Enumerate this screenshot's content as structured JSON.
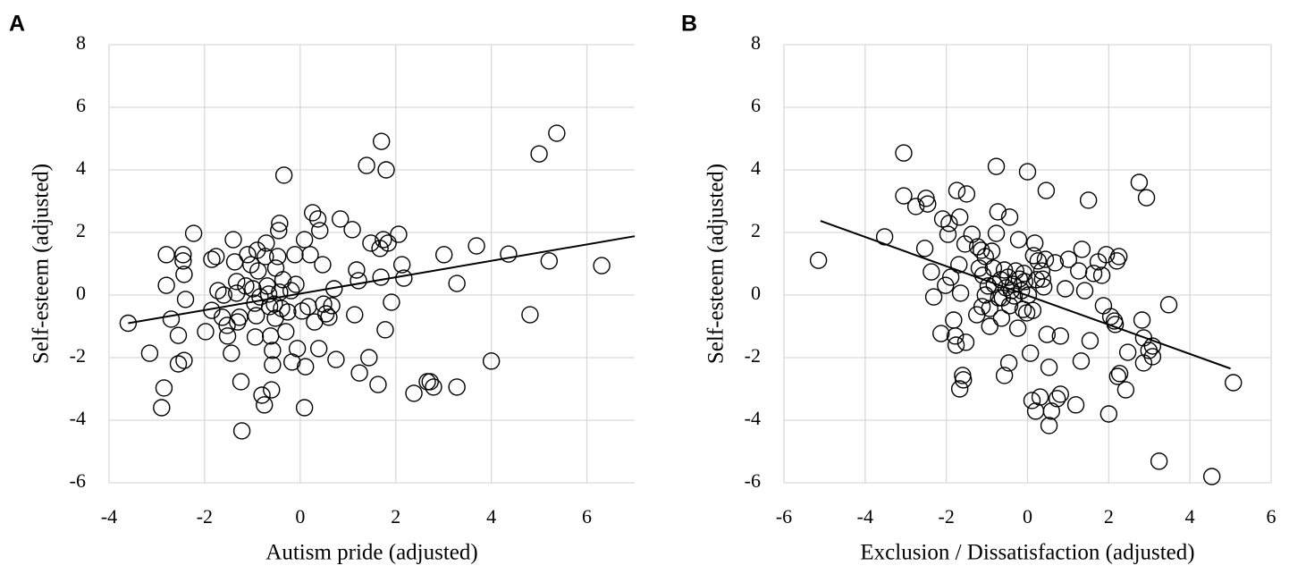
{
  "chart_data": [
    {
      "type": "scatter",
      "panel_label": "A",
      "xlabel": "Autism pride (adjusted)",
      "ylabel": "Self-esteem (adjusted)",
      "xlim": [
        -4,
        7
      ],
      "ylim": [
        -6,
        8
      ],
      "xticks": [
        -4,
        -2,
        0,
        2,
        4,
        6
      ],
      "yticks": [
        -6,
        -4,
        -2,
        0,
        2,
        4,
        6,
        8
      ],
      "grid": true,
      "color": "#000000",
      "x": [
        -3.6,
        -3.15,
        -2.85,
        -2.9,
        -2.8,
        -2.8,
        -2.7,
        -2.55,
        -2.55,
        -2.45,
        -2.45,
        -2.43,
        -2.4,
        -2.43,
        -2.23,
        -1.98,
        -1.85,
        -1.85,
        -1.76,
        -1.72,
        -1.63,
        -1.6,
        -1.53,
        -1.52,
        -1.44,
        -1.4,
        -1.37,
        -1.33,
        -1.33,
        -1.31,
        -1.27,
        -1.24,
        -1.22,
        -1.14,
        -1.1,
        -1.03,
        -0.99,
        -0.95,
        -0.92,
        -0.94,
        -0.9,
        -0.88,
        -0.84,
        -0.8,
        -0.75,
        -0.73,
        -0.71,
        -0.69,
        -0.66,
        -0.64,
        -0.62,
        -0.6,
        -0.58,
        -0.58,
        -0.54,
        -0.52,
        -0.51,
        -0.47,
        -0.45,
        -0.43,
        -0.43,
        -0.39,
        -0.36,
        -0.34,
        -0.3,
        -0.26,
        -0.19,
        -0.17,
        -0.11,
        -0.09,
        -0.06,
        0.04,
        0.09,
        0.11,
        0.09,
        0.17,
        0.21,
        0.26,
        0.3,
        0.37,
        0.39,
        0.41,
        0.47,
        0.49,
        0.54,
        0.6,
        0.66,
        0.71,
        0.75,
        0.84,
        1.09,
        1.14,
        1.18,
        1.22,
        1.24,
        1.39,
        1.44,
        1.48,
        1.63,
        1.69,
        1.7,
        1.67,
        1.74,
        1.78,
        1.8,
        1.84,
        1.91,
        2.06,
        2.13,
        2.17,
        2.38,
        2.66,
        2.72,
        2.79,
        3.01,
        3.28,
        3.28,
        3.69,
        4.0,
        4.36,
        4.81,
        5.0,
        5.21,
        5.37,
        6.31
      ],
      "y": [
        -0.9,
        -1.86,
        -2.97,
        -3.6,
        1.29,
        0.31,
        -0.77,
        -1.29,
        -2.2,
        1.29,
        1.09,
        0.66,
        -0.14,
        -2.09,
        1.97,
        -1.17,
        1.14,
        -0.49,
        1.23,
        0.14,
        -0.71,
        0,
        -0.97,
        -1.31,
        -1.86,
        1.77,
        1.06,
        0.43,
        0.06,
        -0.86,
        -0.71,
        -2.77,
        -4.34,
        0.29,
        1.29,
        0.97,
        0.2,
        -0.26,
        -0.66,
        -1.34,
        1.43,
        0.77,
        -0.06,
        -3.2,
        -3.51,
        1.23,
        1.66,
        0.29,
        0.03,
        -0.37,
        -1.31,
        -3.03,
        -1.77,
        -2.23,
        -0.29,
        -0.74,
        0.86,
        1.23,
        2.06,
        2.29,
        0.09,
        -0.43,
        0.49,
        3.83,
        -1.17,
        -0.54,
        0.14,
        -2.14,
        1.29,
        0.34,
        -1.71,
        -0.51,
        1.77,
        -2.29,
        -3.6,
        -0.37,
        1.29,
        2.63,
        -0.86,
        2.43,
        -1.71,
        2.06,
        0.97,
        -0.29,
        -0.6,
        -0.71,
        -0.34,
        0.2,
        -2.06,
        2.43,
        2.09,
        -0.63,
        0.8,
        0.46,
        -2.49,
        4.14,
        -2.0,
        1.66,
        -2.86,
        0.57,
        4.91,
        1.49,
        1.77,
        -1.11,
        4.0,
        1.66,
        -0.23,
        1.94,
        0.97,
        0.54,
        -3.14,
        -2.77,
        -2.77,
        -2.94,
        1.29,
        0.37,
        -2.94,
        1.57,
        -2.11,
        1.31,
        -0.63,
        4.51,
        1.09,
        5.17,
        0.94
      ],
      "fit": {
        "x": [
          -3.6,
          7
        ],
        "y": [
          -0.9,
          1.88
        ]
      }
    },
    {
      "type": "scatter",
      "panel_label": "B",
      "xlabel": "Exclusion / Dissatisfaction (adjusted)",
      "ylabel": "Self-esteem (adjusted)",
      "xlim": [
        -6,
        6
      ],
      "ylim": [
        -6,
        8
      ],
      "xticks": [
        -6,
        -4,
        -2,
        0,
        2,
        4,
        6
      ],
      "yticks": [
        -6,
        -4,
        -2,
        0,
        2,
        4,
        6,
        8
      ],
      "grid": true,
      "color": "#000000",
      "x": [
        -5.15,
        -3.52,
        -3.05,
        -3.05,
        -2.75,
        -2.5,
        -2.46,
        -2.53,
        -2.37,
        -2.31,
        -2.13,
        -2.09,
        -2.02,
        -1.93,
        -1.96,
        -1.89,
        -1.82,
        -1.78,
        -1.76,
        -1.74,
        -1.69,
        -1.67,
        -1.65,
        -1.67,
        -1.6,
        -1.58,
        -1.54,
        -1.52,
        -1.5,
        -1.37,
        -1.25,
        -1.23,
        -1.19,
        -1.14,
        -1.12,
        -1.1,
        -1.04,
        -1.04,
        -0.97,
        -0.93,
        -0.93,
        -0.88,
        -0.84,
        -0.82,
        -0.77,
        -0.77,
        -0.73,
        -0.71,
        -0.66,
        -0.64,
        -0.62,
        -0.57,
        -0.57,
        -0.53,
        -0.48,
        -0.46,
        -0.44,
        -0.44,
        -0.4,
        -0.35,
        -0.33,
        -0.29,
        -0.24,
        -0.22,
        -0.2,
        -0.15,
        -0.11,
        -0.09,
        -0.07,
        -0.02,
        0,
        0.02,
        0.07,
        0.11,
        0.13,
        0.15,
        0.18,
        0.2,
        0.22,
        0.26,
        0.31,
        0.35,
        0.37,
        0.4,
        0.44,
        0.46,
        0.48,
        0.53,
        0.53,
        0.59,
        0.68,
        0.73,
        0.81,
        0.81,
        0.93,
        1.01,
        1.19,
        1.26,
        1.32,
        1.34,
        1.41,
        1.5,
        1.54,
        1.63,
        1.74,
        1.83,
        1.87,
        1.94,
        2.0,
        2.05,
        2.14,
        2.16,
        2.2,
        2.25,
        2.27,
        2.22,
        2.42,
        2.47,
        2.75,
        2.82,
        2.86,
        2.86,
        2.93,
        2.99,
        3.08,
        3.08,
        3.24,
        3.48,
        4.54,
        5.07
      ],
      "y": [
        1.11,
        1.86,
        4.54,
        3.17,
        2.83,
        3.09,
        2.91,
        1.49,
        0.74,
        -0.06,
        -1.23,
        2.43,
        0.31,
        2.29,
        1.94,
        0.57,
        -0.8,
        -1.31,
        -1.6,
        3.34,
        0.97,
        2.49,
        0.06,
        -3.0,
        -2.57,
        -2.71,
        1.63,
        -1.51,
        3.23,
        1.94,
        -0.63,
        1.54,
        0.86,
        1.43,
        -0.37,
        0.63,
        0,
        1.23,
        0.29,
        -1.0,
        -0.43,
        1.4,
        0.86,
        0.34,
        4.11,
        1.97,
        2.66,
        -0.09,
        0.49,
        -0.74,
        -0.09,
        0.8,
        -2.57,
        0.23,
        0.57,
        -2.17,
        2.49,
        -0.34,
        0.14,
        0.34,
        -0.03,
        0.77,
        -1.06,
        1.77,
        0.51,
        0.14,
        -0.46,
        0.69,
        0.43,
        -0.57,
        3.94,
        0,
        -1.86,
        -3.37,
        -0.49,
        1.26,
        1.66,
        -3.71,
        0.49,
        1.09,
        -3.26,
        0.77,
        0.51,
        0.26,
        1.14,
        3.34,
        -1.26,
        -2.31,
        -4.17,
        -3.71,
        1.03,
        -3.31,
        -3.17,
        -1.31,
        0.2,
        1.14,
        -3.51,
        0.77,
        -2.11,
        1.46,
        0.14,
        3.03,
        -1.46,
        0.69,
        1.06,
        0.63,
        -0.34,
        1.29,
        -3.8,
        -0.69,
        -0.83,
        -0.94,
        1.09,
        1.23,
        -2.51,
        -2.6,
        -3.03,
        -1.83,
        3.6,
        -0.8,
        -1.37,
        -2.17,
        3.11,
        -1.77,
        -1.97,
        -1.63,
        -5.31,
        -0.31,
        -5.8,
        -2.8
      ],
      "fit": {
        "x": [
          -5.1,
          5
        ],
        "y": [
          2.37,
          -2.35
        ]
      }
    }
  ]
}
